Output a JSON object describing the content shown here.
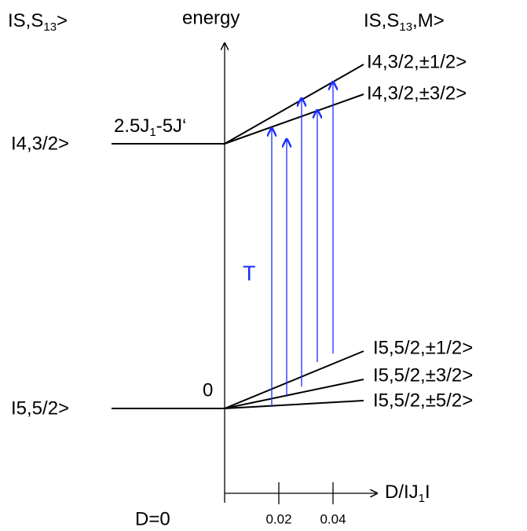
{
  "header": {
    "left": {
      "text": "IS,S",
      "sub": "13",
      "tail": ">"
    },
    "center": "energy",
    "right": {
      "text": "IS,S",
      "sub": "13",
      "tail": ",M>"
    }
  },
  "upper": {
    "label": "I4,3/2>",
    "energy": {
      "text": "2.5J",
      "sub": "1",
      "tail": "-5J‘"
    },
    "states": [
      "I4,3/2,±1/2>",
      "I4,3/2,±3/2>"
    ]
  },
  "lower": {
    "label": "I5,5/2>",
    "energy": "0",
    "states": [
      "I5,5/2,±1/2>",
      "I5,5/2,±3/2>",
      "I5,5/2,±5/2>"
    ]
  },
  "transition": "T",
  "axis": {
    "origin": "D=0",
    "label": {
      "text": "D/IJ",
      "sub": "1",
      "tail": "I"
    },
    "ticks": [
      0.02,
      0.04
    ]
  }
}
